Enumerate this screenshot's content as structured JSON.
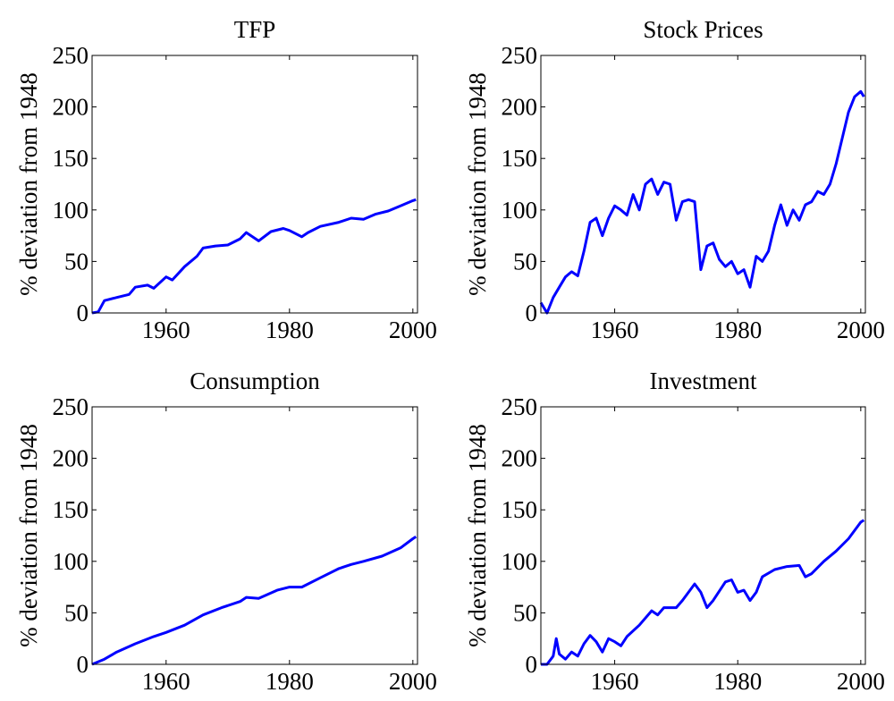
{
  "chart_data": [
    {
      "type": "line",
      "title": "TFP",
      "ylabel": "% deviation from 1948",
      "x": [
        1948,
        1949,
        1950,
        1952,
        1954,
        1955,
        1957,
        1958,
        1960,
        1961,
        1963,
        1965,
        1966,
        1968,
        1970,
        1972,
        1973,
        1975,
        1977,
        1979,
        1980,
        1982,
        1983,
        1985,
        1988,
        1990,
        1992,
        1994,
        1996,
        1998,
        2000,
        2000.5
      ],
      "series": [
        {
          "color": "#0000ff",
          "values": [
            0,
            1,
            12,
            15,
            18,
            25,
            27,
            24,
            35,
            32,
            45,
            55,
            63,
            65,
            66,
            72,
            78,
            70,
            79,
            82,
            80,
            74,
            78,
            84,
            88,
            92,
            91,
            96,
            99,
            104,
            109,
            110
          ]
        }
      ],
      "xlim": [
        1948,
        2000.75
      ],
      "ylim": [
        0,
        250
      ],
      "xticks": [
        1960,
        1980,
        2000
      ],
      "yticks": [
        0,
        50,
        100,
        150,
        200,
        250
      ]
    },
    {
      "type": "line",
      "title": "Stock Prices",
      "ylabel": "% deviation from 1948",
      "x": [
        1948,
        1949,
        1950,
        1951,
        1952,
        1953,
        1954,
        1955,
        1956,
        1957,
        1958,
        1959,
        1960,
        1961,
        1962,
        1963,
        1964,
        1965,
        1966,
        1967,
        1968,
        1969,
        1970,
        1971,
        1972,
        1973,
        1974,
        1975,
        1976,
        1977,
        1978,
        1979,
        1980,
        1981,
        1982,
        1983,
        1984,
        1985,
        1986,
        1987,
        1988,
        1989,
        1990,
        1991,
        1992,
        1993,
        1994,
        1995,
        1996,
        1997,
        1998,
        1999,
        2000,
        2000.5
      ],
      "series": [
        {
          "color": "#0000ff",
          "values": [
            10,
            0,
            15,
            25,
            35,
            40,
            36,
            60,
            88,
            92,
            75,
            92,
            104,
            100,
            95,
            115,
            100,
            125,
            130,
            115,
            127,
            125,
            90,
            108,
            110,
            108,
            42,
            65,
            68,
            52,
            45,
            50,
            38,
            42,
            25,
            55,
            50,
            60,
            85,
            105,
            85,
            100,
            90,
            105,
            108,
            118,
            115,
            125,
            145,
            170,
            195,
            210,
            215,
            210
          ]
        }
      ],
      "xlim": [
        1948,
        2000.75
      ],
      "ylim": [
        0,
        250
      ],
      "xticks": [
        1960,
        1980,
        2000
      ],
      "yticks": [
        0,
        50,
        100,
        150,
        200,
        250
      ]
    },
    {
      "type": "line",
      "title": "Consumption",
      "ylabel": "% deviation from 1948",
      "x": [
        1948,
        1950,
        1952,
        1955,
        1958,
        1960,
        1963,
        1966,
        1969,
        1972,
        1973,
        1975,
        1978,
        1980,
        1982,
        1985,
        1988,
        1990,
        1992,
        1995,
        1998,
        2000,
        2000.5
      ],
      "series": [
        {
          "color": "#0000ff",
          "values": [
            0,
            5,
            12,
            20,
            27,
            31,
            38,
            48,
            55,
            61,
            65,
            64,
            72,
            75,
            75,
            84,
            93,
            97,
            100,
            105,
            113,
            122,
            124
          ]
        }
      ],
      "xlim": [
        1948,
        2000.75
      ],
      "ylim": [
        0,
        250
      ],
      "xticks": [
        1960,
        1980,
        2000
      ],
      "yticks": [
        0,
        50,
        100,
        150,
        200,
        250
      ]
    },
    {
      "type": "line",
      "title": "Investment",
      "ylabel": "% deviation from 1948",
      "x": [
        1948,
        1949,
        1950,
        1950.5,
        1951,
        1952,
        1953,
        1954,
        1955,
        1956,
        1957,
        1958,
        1959,
        1960,
        1961,
        1962,
        1964,
        1966,
        1967,
        1968,
        1970,
        1971,
        1973,
        1974,
        1975,
        1976,
        1978,
        1979,
        1980,
        1981,
        1982,
        1983,
        1984,
        1986,
        1988,
        1990,
        1991,
        1992,
        1994,
        1996,
        1998,
        2000,
        2000.5
      ],
      "series": [
        {
          "color": "#0000ff",
          "values": [
            0,
            0,
            8,
            25,
            10,
            5,
            12,
            8,
            20,
            28,
            22,
            12,
            25,
            22,
            18,
            27,
            38,
            52,
            48,
            55,
            55,
            62,
            78,
            70,
            55,
            62,
            80,
            82,
            70,
            72,
            62,
            70,
            85,
            92,
            95,
            96,
            85,
            88,
            100,
            110,
            122,
            138,
            140
          ]
        }
      ],
      "xlim": [
        1948,
        2000.75
      ],
      "ylim": [
        0,
        250
      ],
      "xticks": [
        1960,
        1980,
        2000
      ],
      "yticks": [
        0,
        50,
        100,
        150,
        200,
        250
      ]
    }
  ]
}
